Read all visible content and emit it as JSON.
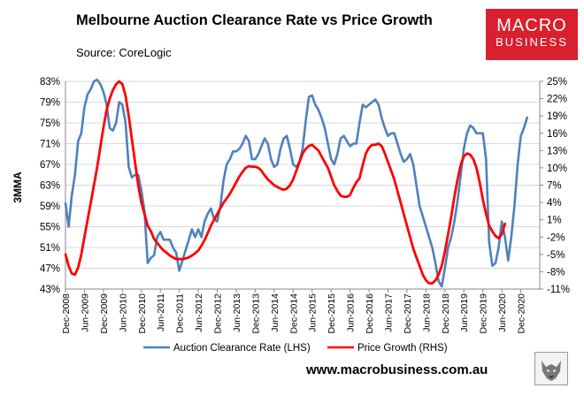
{
  "header": {
    "title": "Melbourne Auction Clearance Rate vs Price Growth",
    "source": "Source: CoreLogic"
  },
  "logo": {
    "line1": "MACRO",
    "line2": "BUSINESS"
  },
  "footer": {
    "url": "www.macrobusiness.com.au"
  },
  "colors": {
    "clearance": "#4f81bd",
    "growth": "#ff0000",
    "logo_bg": "#d8202f"
  },
  "chart_data": {
    "type": "line",
    "title": "Melbourne Auction Clearance Rate vs Price Growth",
    "ylabel": "3MMA",
    "xlabel": "",
    "x_tick_labels": [
      "Dec-2008",
      "Jun-2009",
      "Dec-2009",
      "Jun-2010",
      "Dec-2010",
      "Jun-2011",
      "Dec-2011",
      "Jun-2012",
      "Dec-2012",
      "Jun-2013",
      "Dec-2013",
      "Jun-2014",
      "Dec-2014",
      "Jun-2015",
      "Dec-2015",
      "Jun-2016",
      "Dec-2016",
      "Jun-2017",
      "Dec-2017",
      "Jun-2018",
      "Dec-2018",
      "Jun-2019",
      "Dec-2019",
      "Jun-2020",
      "Dec-2020"
    ],
    "y_left": {
      "min": 43,
      "max": 83,
      "ticks": [
        43,
        47,
        51,
        55,
        59,
        63,
        67,
        71,
        75,
        79,
        83
      ],
      "format": "%"
    },
    "y_right": {
      "min": -11,
      "max": 25,
      "ticks": [
        -11,
        -8,
        -5,
        -2,
        1,
        4,
        7,
        10,
        13,
        16,
        19,
        22,
        25
      ],
      "format": "%"
    },
    "x_range_months": [
      0,
      150
    ],
    "legend": {
      "position": "bottom"
    },
    "series": [
      {
        "name": "Auction Clearance Rate (LHS)",
        "axis": "left",
        "points": [
          [
            0,
            59.5
          ],
          [
            1,
            55
          ],
          [
            2,
            61
          ],
          [
            3,
            65
          ],
          [
            4,
            71.5
          ],
          [
            5,
            73
          ],
          [
            6,
            78
          ],
          [
            7,
            80.5
          ],
          [
            8,
            81.5
          ],
          [
            9,
            83
          ],
          [
            10,
            83.3
          ],
          [
            11,
            82.5
          ],
          [
            12,
            81
          ],
          [
            13,
            78.5
          ],
          [
            14,
            74
          ],
          [
            15,
            73.5
          ],
          [
            16,
            75
          ],
          [
            17,
            79
          ],
          [
            18,
            78.5
          ],
          [
            19,
            75
          ],
          [
            20,
            66.5
          ],
          [
            21,
            64.5
          ],
          [
            22,
            65
          ],
          [
            23,
            65
          ],
          [
            24,
            62
          ],
          [
            25,
            58
          ],
          [
            26,
            48
          ],
          [
            27,
            49
          ],
          [
            28,
            49.5
          ],
          [
            29,
            53
          ],
          [
            30,
            54
          ],
          [
            31,
            52.5
          ],
          [
            32,
            52.5
          ],
          [
            33,
            52.5
          ],
          [
            34,
            51
          ],
          [
            35,
            50
          ],
          [
            36,
            46.5
          ],
          [
            37,
            48.5
          ],
          [
            38,
            50.5
          ],
          [
            39,
            52.5
          ],
          [
            40,
            54.5
          ],
          [
            41,
            53
          ],
          [
            42,
            54.5
          ],
          [
            43,
            53
          ],
          [
            44,
            56
          ],
          [
            45,
            57.5
          ],
          [
            46,
            58.5
          ],
          [
            47,
            56.5
          ],
          [
            48,
            56
          ],
          [
            49,
            59
          ],
          [
            50,
            64
          ],
          [
            51,
            67
          ],
          [
            52,
            68
          ],
          [
            53,
            69.5
          ],
          [
            54,
            69.5
          ],
          [
            55,
            70
          ],
          [
            56,
            71
          ],
          [
            57,
            72.5
          ],
          [
            58,
            71.5
          ],
          [
            59,
            68
          ],
          [
            60,
            68
          ],
          [
            61,
            69
          ],
          [
            62,
            70.5
          ],
          [
            63,
            72
          ],
          [
            64,
            71
          ],
          [
            65,
            68
          ],
          [
            66,
            66.5
          ],
          [
            67,
            67
          ],
          [
            68,
            70
          ],
          [
            69,
            72
          ],
          [
            70,
            72.5
          ],
          [
            71,
            70
          ],
          [
            72,
            67
          ],
          [
            73,
            66.5
          ],
          [
            74,
            67.5
          ],
          [
            75,
            70
          ],
          [
            76,
            75.5
          ],
          [
            77,
            80
          ],
          [
            78,
            80.3
          ],
          [
            79,
            78.5
          ],
          [
            80,
            77.5
          ],
          [
            81,
            76
          ],
          [
            82,
            74
          ],
          [
            83,
            71
          ],
          [
            84,
            68
          ],
          [
            85,
            67
          ],
          [
            86,
            69
          ],
          [
            87,
            72
          ],
          [
            88,
            72.5
          ],
          [
            89,
            71.5
          ],
          [
            90,
            70.5
          ],
          [
            91,
            71
          ],
          [
            92,
            71
          ],
          [
            93,
            75
          ],
          [
            94,
            78.5
          ],
          [
            95,
            78
          ],
          [
            96,
            78.5
          ],
          [
            97,
            79
          ],
          [
            98,
            79.5
          ],
          [
            99,
            78.5
          ],
          [
            100,
            76
          ],
          [
            101,
            74
          ],
          [
            102,
            72.5
          ],
          [
            103,
            73
          ],
          [
            104,
            73
          ],
          [
            105,
            71
          ],
          [
            106,
            69
          ],
          [
            107,
            67.5
          ],
          [
            108,
            68
          ],
          [
            109,
            69
          ],
          [
            110,
            67
          ],
          [
            111,
            63
          ],
          [
            112,
            59
          ],
          [
            113,
            57
          ],
          [
            114,
            55
          ],
          [
            115,
            53
          ],
          [
            116,
            51
          ],
          [
            117,
            48
          ],
          [
            118,
            44.5
          ],
          [
            119,
            43.5
          ],
          [
            120,
            47
          ],
          [
            121,
            51
          ],
          [
            122,
            53
          ],
          [
            123,
            56
          ],
          [
            124,
            60
          ],
          [
            125,
            65
          ],
          [
            126,
            70
          ],
          [
            127,
            73
          ],
          [
            128,
            74.5
          ],
          [
            129,
            74
          ],
          [
            130,
            73
          ],
          [
            131,
            73
          ],
          [
            132,
            73
          ],
          [
            133,
            68
          ],
          [
            134,
            52
          ],
          [
            135,
            47.5
          ],
          [
            136,
            48
          ],
          [
            137,
            51
          ],
          [
            138,
            56
          ],
          [
            139,
            53
          ],
          [
            140,
            48.5
          ],
          [
            141,
            53
          ],
          [
            142,
            59
          ],
          [
            143,
            67
          ],
          [
            144,
            72.5
          ],
          [
            145,
            74
          ],
          [
            146,
            76
          ]
        ]
      },
      {
        "name": "Price Growth (RHS)",
        "axis": "right",
        "points": [
          [
            0,
            -5
          ],
          [
            1,
            -7
          ],
          [
            2,
            -8.3
          ],
          [
            3,
            -8.5
          ],
          [
            4,
            -7.3
          ],
          [
            5,
            -5
          ],
          [
            6,
            -2
          ],
          [
            7,
            1
          ],
          [
            8,
            4
          ],
          [
            9,
            7
          ],
          [
            10,
            10
          ],
          [
            11,
            13.5
          ],
          [
            12,
            17
          ],
          [
            13,
            20
          ],
          [
            14,
            22
          ],
          [
            15,
            23.5
          ],
          [
            16,
            24.5
          ],
          [
            17,
            25
          ],
          [
            18,
            24.5
          ],
          [
            19,
            22.5
          ],
          [
            20,
            19
          ],
          [
            21,
            15
          ],
          [
            22,
            11
          ],
          [
            23,
            7
          ],
          [
            24,
            4
          ],
          [
            25,
            2
          ],
          [
            26,
            0
          ],
          [
            27,
            -1
          ],
          [
            28,
            -2.3
          ],
          [
            29,
            -3
          ],
          [
            30,
            -3.7
          ],
          [
            31,
            -4.3
          ],
          [
            32,
            -4.7
          ],
          [
            33,
            -5.2
          ],
          [
            34,
            -5.5
          ],
          [
            35,
            -5.8
          ],
          [
            36,
            -5.8
          ],
          [
            37,
            -5.8
          ],
          [
            38,
            -5.7
          ],
          [
            39,
            -5.5
          ],
          [
            40,
            -5.2
          ],
          [
            41,
            -4.8
          ],
          [
            42,
            -4.3
          ],
          [
            43,
            -3.5
          ],
          [
            44,
            -2.5
          ],
          [
            45,
            -1.3
          ],
          [
            46,
            0
          ],
          [
            47,
            1
          ],
          [
            48,
            2
          ],
          [
            49,
            3
          ],
          [
            50,
            4
          ],
          [
            51,
            4.7
          ],
          [
            52,
            5.5
          ],
          [
            53,
            6.5
          ],
          [
            54,
            7.5
          ],
          [
            55,
            8.5
          ],
          [
            56,
            9.3
          ],
          [
            57,
            10
          ],
          [
            58,
            10.3
          ],
          [
            59,
            10.2
          ],
          [
            60,
            10.2
          ],
          [
            61,
            10
          ],
          [
            62,
            9.5
          ],
          [
            63,
            8.7
          ],
          [
            64,
            8
          ],
          [
            65,
            7.5
          ],
          [
            66,
            7
          ],
          [
            67,
            6.7
          ],
          [
            68,
            6.4
          ],
          [
            69,
            6.2
          ],
          [
            70,
            6.4
          ],
          [
            71,
            7
          ],
          [
            72,
            8
          ],
          [
            73,
            9.5
          ],
          [
            74,
            11
          ],
          [
            75,
            12.5
          ],
          [
            76,
            13.3
          ],
          [
            77,
            13.8
          ],
          [
            78,
            14
          ],
          [
            79,
            13.5
          ],
          [
            80,
            13
          ],
          [
            81,
            12
          ],
          [
            82,
            11
          ],
          [
            83,
            10
          ],
          [
            84,
            8.5
          ],
          [
            85,
            7
          ],
          [
            86,
            6
          ],
          [
            87,
            5.2
          ],
          [
            88,
            5
          ],
          [
            89,
            5
          ],
          [
            90,
            5.3
          ],
          [
            91,
            6.5
          ],
          [
            92,
            7.5
          ],
          [
            93,
            8.2
          ],
          [
            94,
            10.5
          ],
          [
            95,
            12.5
          ],
          [
            96,
            13.5
          ],
          [
            97,
            14
          ],
          [
            98,
            14
          ],
          [
            99,
            14.2
          ],
          [
            100,
            13.8
          ],
          [
            101,
            12.5
          ],
          [
            102,
            11
          ],
          [
            103,
            9.5
          ],
          [
            104,
            8
          ],
          [
            105,
            6
          ],
          [
            106,
            4
          ],
          [
            107,
            2
          ],
          [
            108,
            0
          ],
          [
            109,
            -2
          ],
          [
            110,
            -4
          ],
          [
            111,
            -5.5
          ],
          [
            112,
            -7
          ],
          [
            113,
            -8.5
          ],
          [
            114,
            -9.5
          ],
          [
            115,
            -10
          ],
          [
            116,
            -10
          ],
          [
            117,
            -9.5
          ],
          [
            118,
            -8.5
          ],
          [
            119,
            -7
          ],
          [
            120,
            -4.5
          ],
          [
            121,
            -1.5
          ],
          [
            122,
            1.5
          ],
          [
            123,
            5
          ],
          [
            124,
            8
          ],
          [
            125,
            10.5
          ],
          [
            126,
            12
          ],
          [
            127,
            12.5
          ],
          [
            128,
            12.3
          ],
          [
            129,
            11.5
          ],
          [
            130,
            10
          ],
          [
            131,
            7.5
          ],
          [
            132,
            4.5
          ],
          [
            133,
            2
          ],
          [
            134,
            0
          ],
          [
            135,
            -1
          ],
          [
            136,
            -1.8
          ],
          [
            137,
            -2.2
          ],
          [
            138,
            -1.5
          ],
          [
            139,
            0.3
          ]
        ]
      }
    ]
  }
}
